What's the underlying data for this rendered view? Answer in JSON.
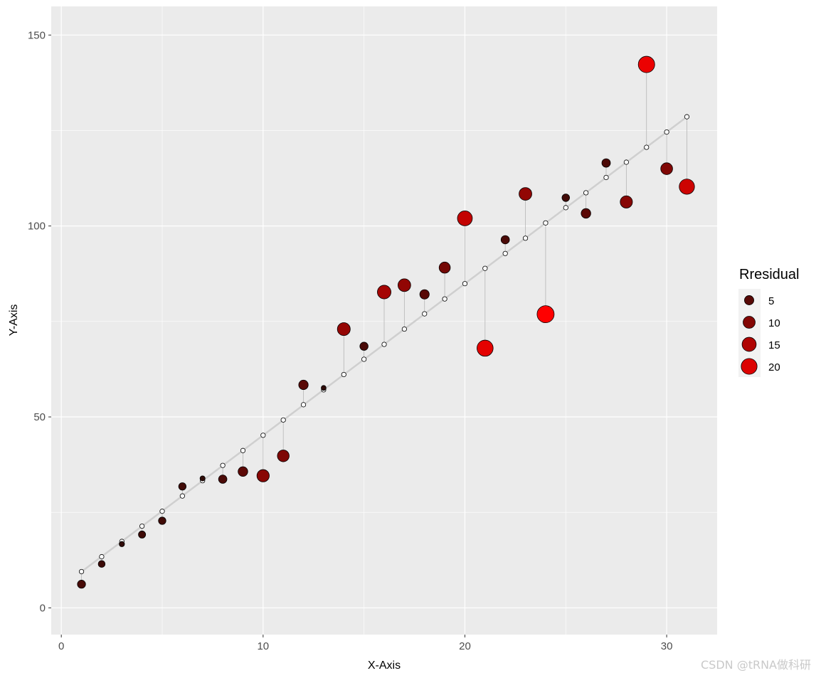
{
  "chart_data": {
    "type": "scatter",
    "title": "",
    "xlabel": "X-Axis",
    "ylabel": "Y-Axis",
    "xlim": [
      -0.5,
      32.5
    ],
    "ylim": [
      -7,
      157.5
    ],
    "x_ticks": [
      0,
      10,
      20,
      30
    ],
    "y_ticks": [
      0,
      50,
      100,
      150
    ],
    "grid": true,
    "legend": {
      "title": "Rresidual",
      "position": "right",
      "entries": [
        {
          "label": "5",
          "value": 5
        },
        {
          "label": "10",
          "value": 10
        },
        {
          "label": "15",
          "value": 15
        },
        {
          "label": "20",
          "value": 20
        }
      ]
    },
    "fit_line": {
      "intercept": 5.5,
      "slope": 3.97
    },
    "series": [
      {
        "x": [
          1,
          2,
          3,
          4,
          5,
          6,
          7,
          8,
          9,
          10,
          11,
          12,
          13,
          14,
          15,
          16,
          17,
          18,
          19,
          20,
          21,
          22,
          23,
          24,
          25,
          26,
          27,
          28,
          29,
          30,
          31
        ],
        "observed": [
          6.2,
          11.5,
          16.7,
          19.2,
          22.8,
          31.8,
          33.9,
          33.7,
          35.7,
          34.6,
          39.8,
          58.4,
          57.6,
          73.0,
          68.5,
          82.7,
          84.5,
          82.1,
          89.1,
          102.0,
          68.0,
          96.4,
          108.4,
          76.9,
          107.4,
          103.3,
          116.5,
          106.3,
          142.3,
          115.0,
          110.3
        ],
        "fitted": [
          9.5,
          13.4,
          17.4,
          21.4,
          25.3,
          29.3,
          33.3,
          37.3,
          41.2,
          45.2,
          49.2,
          53.2,
          57.1,
          61.1,
          65.1,
          69.0,
          73.0,
          77.0,
          80.9,
          84.9,
          88.9,
          92.8,
          96.8,
          100.8,
          104.8,
          108.7,
          112.7,
          116.7,
          120.6,
          124.6,
          128.6
        ],
        "residual": [
          3.3,
          1.9,
          0.7,
          2.2,
          2.5,
          2.5,
          0.6,
          3.6,
          5.5,
          10.6,
          9.4,
          5.2,
          0.5,
          11.9,
          3.4,
          13.7,
          11.5,
          5.1,
          8.2,
          17.1,
          20.9,
          3.6,
          11.6,
          23.9,
          2.6,
          5.4,
          3.8,
          10.4,
          21.7,
          9.6,
          18.3
        ]
      }
    ]
  },
  "watermark": "CSDN @tRNA做科研"
}
